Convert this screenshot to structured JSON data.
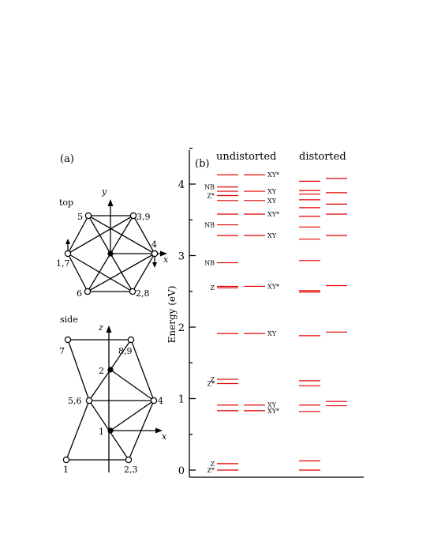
{
  "panel_a": {
    "label": "(a)",
    "top": {
      "title": "top",
      "axis_y": "y",
      "axis_x": "x",
      "nodes": [
        "5",
        "3,9",
        "4",
        "2,8",
        "6",
        "1,7"
      ]
    },
    "side": {
      "title": "side",
      "axis_z": "z",
      "axis_x": "x",
      "nodes": [
        "7",
        "8,9",
        "2",
        "5,6",
        "4",
        "1",
        "1",
        "2,3"
      ]
    }
  },
  "panel_b": {
    "label": "(b)",
    "headers": [
      "undistorted",
      "distorted"
    ],
    "y_label": "Energy (eV)",
    "level_color": "#e00000"
  },
  "chart_data": {
    "type": "energy-level diagram",
    "ylabel": "Energy (eV)",
    "ylim": [
      -0.1,
      4.5
    ],
    "yticks": [
      0,
      1,
      2,
      3,
      4
    ],
    "columns": [
      {
        "group": "undistorted",
        "levels": [
          {
            "e": 0.0,
            "label": "Z*"
          },
          {
            "e": 0.09,
            "label": "Z"
          },
          {
            "e": 0.83
          },
          {
            "e": 0.91
          },
          {
            "e": 1.21,
            "label": "Z*"
          },
          {
            "e": 1.27,
            "label": "Z"
          },
          {
            "e": 1.91
          },
          {
            "e": 2.55,
            "label": "Z"
          },
          {
            "e": 2.57
          },
          {
            "e": 2.9,
            "label": "NB"
          },
          {
            "e": 3.28
          },
          {
            "e": 3.43,
            "label": "NB"
          },
          {
            "e": 3.58
          },
          {
            "e": 3.77
          },
          {
            "e": 3.84,
            "label": "Z*"
          },
          {
            "e": 3.9
          },
          {
            "e": 3.96,
            "label": "NB"
          },
          {
            "e": 4.13
          }
        ]
      },
      {
        "group": "undistorted",
        "levels": [
          {
            "e": 0.83,
            "label": "XY*"
          },
          {
            "e": 0.91,
            "label": "XY"
          },
          {
            "e": 1.91,
            "label": "XY"
          },
          {
            "e": 2.57,
            "label": "XY*"
          },
          {
            "e": 3.28,
            "label": "XY"
          },
          {
            "e": 3.58,
            "label": "XY*"
          },
          {
            "e": 3.77,
            "label": "XY"
          },
          {
            "e": 3.9,
            "label": "XY"
          },
          {
            "e": 4.13,
            "label": "XY*"
          }
        ]
      },
      {
        "group": "distorted",
        "levels": [
          {
            "e": 0.0
          },
          {
            "e": 0.13
          },
          {
            "e": 0.82
          },
          {
            "e": 0.91
          },
          {
            "e": 1.18
          },
          {
            "e": 1.25
          },
          {
            "e": 1.88
          },
          {
            "e": 2.49
          },
          {
            "e": 2.51
          },
          {
            "e": 2.93
          },
          {
            "e": 3.23
          },
          {
            "e": 3.4
          },
          {
            "e": 3.55
          },
          {
            "e": 3.67
          },
          {
            "e": 3.78
          },
          {
            "e": 3.86
          },
          {
            "e": 3.91
          },
          {
            "e": 4.04
          }
        ]
      },
      {
        "group": "distorted",
        "levels": [
          {
            "e": 0.9
          },
          {
            "e": 0.96
          },
          {
            "e": 1.93
          },
          {
            "e": 2.58
          },
          {
            "e": 3.28
          },
          {
            "e": 3.58
          },
          {
            "e": 3.72
          },
          {
            "e": 3.88
          },
          {
            "e": 4.08
          }
        ]
      }
    ]
  }
}
